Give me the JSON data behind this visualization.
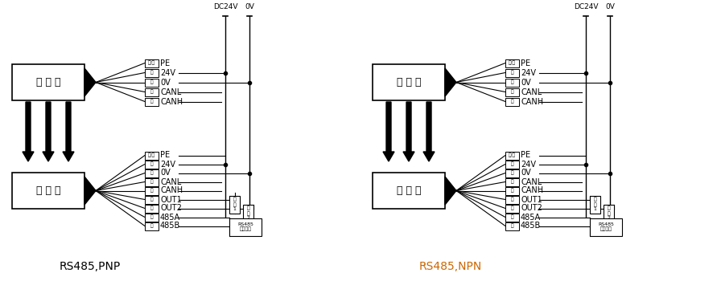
{
  "title_left": "RS485,PNP",
  "title_right": "RS485,NPN",
  "title_color_left": "#000000",
  "title_color_right": "#cc6600",
  "emitter_label": "发 射 器",
  "receiver_label": "接 收 器",
  "dc24v_label": "DC24V",
  "ov_label": "0V",
  "rs485_label": "RS485\n设备终端",
  "load1_label": "负\n载\n1",
  "load2_label": "负\n载\n2",
  "tx_wires_top": [
    "黄/绿",
    "红",
    "绿",
    "蓝",
    "黄"
  ],
  "tx_labels_top": [
    "PE",
    "24V",
    "0V",
    "CANL",
    "CANH"
  ],
  "rx_wires_bottom": [
    "黄/绿",
    "红",
    "绿",
    "蓝",
    "黄",
    "黑",
    "棕",
    "白",
    "橙"
  ],
  "rx_labels_bottom": [
    "PE",
    "24V",
    "0V",
    "CANL",
    "CANH",
    "OUT1",
    "OUT2",
    "485A",
    "485B"
  ],
  "background_color": "#ffffff",
  "line_color": "#000000",
  "box_color": "#000000",
  "font_size_label": 7,
  "font_size_box": 9,
  "font_size_title": 10,
  "font_size_small": 5.5
}
